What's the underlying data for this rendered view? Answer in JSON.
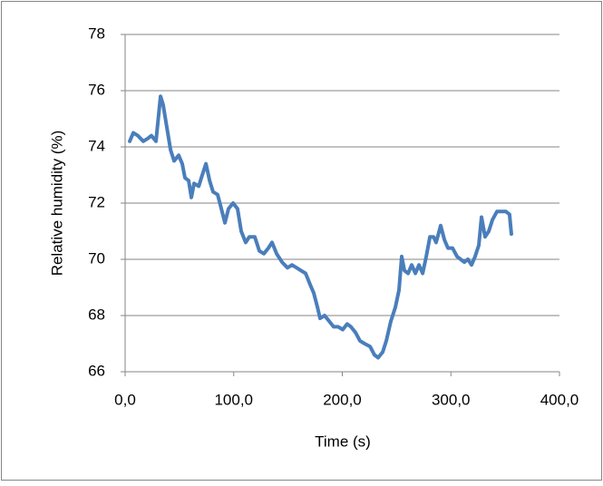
{
  "chart_data": {
    "type": "line",
    "xlabel": "Time (s)",
    "ylabel": "Relative humidity (%)",
    "xlim": [
      0,
      400
    ],
    "ylim": [
      66,
      78
    ],
    "xticks": [
      {
        "value": 0,
        "label": "0,0"
      },
      {
        "value": 100,
        "label": "100,0"
      },
      {
        "value": 200,
        "label": "200,0"
      },
      {
        "value": 300,
        "label": "300,0"
      },
      {
        "value": 400,
        "label": "400,0"
      }
    ],
    "yticks": [
      66,
      68,
      70,
      72,
      74,
      76,
      78
    ],
    "grid": true,
    "series": [
      {
        "color": "#4a7ebb",
        "x": [
          4.2,
          7.5,
          11.7,
          16.7,
          20.9,
          24.2,
          28.4,
          32.6,
          35,
          38.4,
          41.8,
          45.1,
          49.3,
          52.6,
          55.1,
          58.5,
          61,
          63.5,
          67.8,
          70.2,
          74.4,
          77.8,
          81,
          85.2,
          88.6,
          91.9,
          95.2,
          99.4,
          103.5,
          106.9,
          111,
          114.4,
          119.4,
          123.6,
          127.8,
          131.9,
          135.3,
          139.5,
          144.5,
          149.5,
          153.7,
          157.9,
          162,
          166.2,
          170.4,
          173.7,
          177.1,
          179.5,
          183.7,
          187.9,
          192,
          196.2,
          200.4,
          204.5,
          207.9,
          212.1,
          216.3,
          220.5,
          225.5,
          229.6,
          233,
          237.2,
          240.5,
          244.7,
          248.9,
          252.2,
          254.7,
          257.2,
          260.6,
          263.9,
          267.3,
          270.6,
          274,
          277.3,
          280.7,
          284,
          286.4,
          290.6,
          294,
          297.3,
          301.5,
          305.7,
          309,
          312.3,
          315.7,
          319,
          322.3,
          325.7,
          328.2,
          331.5,
          334.9,
          338.2,
          342.4,
          346.5,
          350.7,
          354,
          355.7
        ],
        "values": [
          74.2,
          74.5,
          74.4,
          74.2,
          74.3,
          74.4,
          74.2,
          75.8,
          75.5,
          74.7,
          73.9,
          73.5,
          73.7,
          73.4,
          72.9,
          72.8,
          72.2,
          72.7,
          72.6,
          72.9,
          73.4,
          72.8,
          72.4,
          72.3,
          71.8,
          71.3,
          71.8,
          72.0,
          71.8,
          71.0,
          70.6,
          70.8,
          70.8,
          70.3,
          70.2,
          70.4,
          70.6,
          70.2,
          69.9,
          69.7,
          69.8,
          69.7,
          69.6,
          69.5,
          69.1,
          68.8,
          68.3,
          67.9,
          68.0,
          67.8,
          67.6,
          67.6,
          67.5,
          67.7,
          67.6,
          67.4,
          67.1,
          67.0,
          66.9,
          66.6,
          66.5,
          66.7,
          67.1,
          67.8,
          68.3,
          68.9,
          70.1,
          69.6,
          69.5,
          69.8,
          69.5,
          69.8,
          69.5,
          70.1,
          70.8,
          70.8,
          70.6,
          71.2,
          70.7,
          70.4,
          70.4,
          70.1,
          70.0,
          69.9,
          70.0,
          69.8,
          70.1,
          70.5,
          71.5,
          70.8,
          71.0,
          71.4,
          71.7,
          71.7,
          71.7,
          71.6,
          70.9
        ]
      }
    ]
  }
}
